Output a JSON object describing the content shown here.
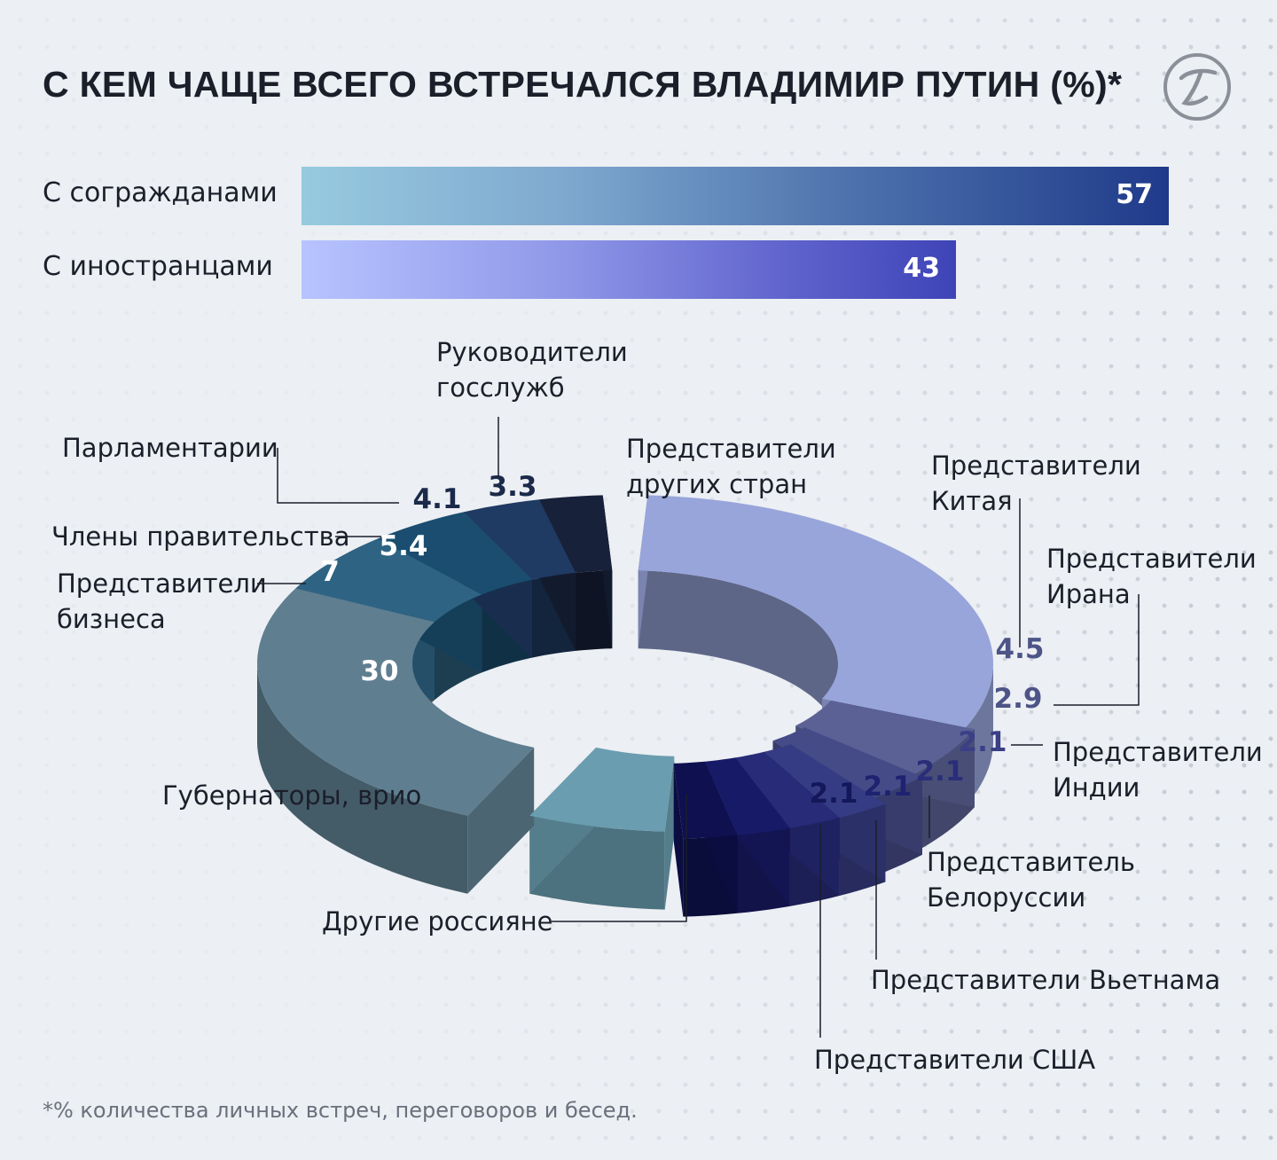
{
  "title": "С КЕМ ЧАЩЕ ВСЕГО ВСТРЕЧАЛСЯ ВЛАДИМИР ПУТИН (%)*",
  "footnote": "*% количества личных встреч, переговоров и бесед.",
  "colors": {
    "background": "#eceff3",
    "text": "#1b1f2a",
    "bar1_start": "#97cadf",
    "bar1_end": "#1f3a8a",
    "bar2_start": "#b7c4ff",
    "bar2_end": "#3e44b7"
  },
  "icons": {
    "logo": "publisher-logo-icon"
  },
  "chart_data": [
    {
      "type": "bar",
      "orientation": "horizontal",
      "categories": [
        "С согражданами",
        "С иностранцами"
      ],
      "values": [
        57,
        43
      ],
      "value_labels": [
        "57",
        "43"
      ],
      "xlim": [
        0,
        57
      ]
    },
    {
      "type": "pie",
      "style": "3d-donut",
      "slices": [
        {
          "label": "Губернаторы, врио",
          "value": 30,
          "value_label": "30",
          "color": "#5f7e90"
        },
        {
          "label": "Представители бизнеса",
          "value": 7,
          "value_label": "7",
          "color": "#2e6383"
        },
        {
          "label": "Члены правительства",
          "value": 5.4,
          "value_label": "5.4",
          "color": "#1a4d6f"
        },
        {
          "label": "Парламентарии",
          "value": 4.1,
          "value_label": "4.1",
          "color": "#1f3a63"
        },
        {
          "label": "Руководители госслужб",
          "value": 3.3,
          "value_label": "3.3",
          "color": "#17213a"
        },
        {
          "label": "Представители других стран",
          "value": 26.8,
          "value_label": "",
          "color": "#98a5db"
        },
        {
          "label": "Представители Китая",
          "value": 4.5,
          "value_label": "4.5",
          "color": "#5b6195"
        },
        {
          "label": "Представители Ирана",
          "value": 2.9,
          "value_label": "2.9",
          "color": "#454b87"
        },
        {
          "label": "Представители Индии",
          "value": 2.1,
          "value_label": "2.1",
          "color": "#363c83"
        },
        {
          "label": "Представитель Белоруссии",
          "value": 2.1,
          "value_label": "2.1",
          "color": "#272b78"
        },
        {
          "label": "Представители Вьетнама",
          "value": 2.1,
          "value_label": "2.1",
          "color": "#171a66"
        },
        {
          "label": "Представители США",
          "value": 2.1,
          "value_label": "2.1",
          "color": "#0e1050"
        },
        {
          "label": "Другие россияне",
          "value": 7.2,
          "value_label": "",
          "color": "#6a9db0"
        }
      ]
    }
  ]
}
